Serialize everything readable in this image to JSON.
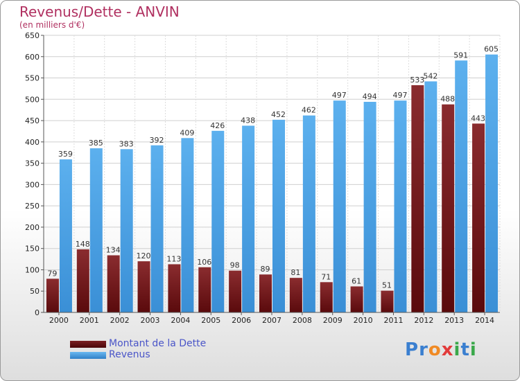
{
  "header": {
    "title": "Revenus/Dette - ANVIN",
    "subtitle": "(en milliers d'€)"
  },
  "legend": {
    "debt_label": "Montant de la Dette",
    "revenue_label": "Revenus"
  },
  "logo": {
    "letters": [
      "P",
      "r",
      "o",
      "x",
      "i",
      "t",
      "i"
    ],
    "colors": [
      "#3a7fd0",
      "#3a7fd0",
      "#f08a24",
      "#e23b3b",
      "#3aa84a",
      "#3a7fd0",
      "#3aa84a"
    ]
  },
  "colors": {
    "debt": "#7a1f22",
    "debt_dark": "#5a0a0c",
    "revenue": "#55aaea",
    "revenue_dark": "#2f80c8",
    "title": "#b03060",
    "legend_text": "#4a55c8"
  },
  "chart_data": {
    "type": "bar",
    "title": "Revenus/Dette - ANVIN",
    "subtitle": "(en milliers d'€)",
    "categories": [
      "2000",
      "2001",
      "2002",
      "2003",
      "2004",
      "2005",
      "2006",
      "2007",
      "2008",
      "2009",
      "2010",
      "2011",
      "2012",
      "2013",
      "2014"
    ],
    "series": [
      {
        "name": "Montant de la Dette",
        "values": [
          79,
          148,
          134,
          120,
          113,
          106,
          98,
          89,
          81,
          71,
          61,
          51,
          533,
          488,
          443
        ]
      },
      {
        "name": "Revenus",
        "values": [
          359,
          385,
          383,
          392,
          409,
          426,
          438,
          452,
          462,
          497,
          494,
          497,
          542,
          591,
          605
        ]
      }
    ],
    "ylim": [
      0,
      650
    ],
    "yticks": [
      0,
      50,
      100,
      150,
      200,
      250,
      300,
      350,
      400,
      450,
      500,
      550,
      600,
      650
    ],
    "grid": true,
    "legend_position": "bottom-left"
  }
}
